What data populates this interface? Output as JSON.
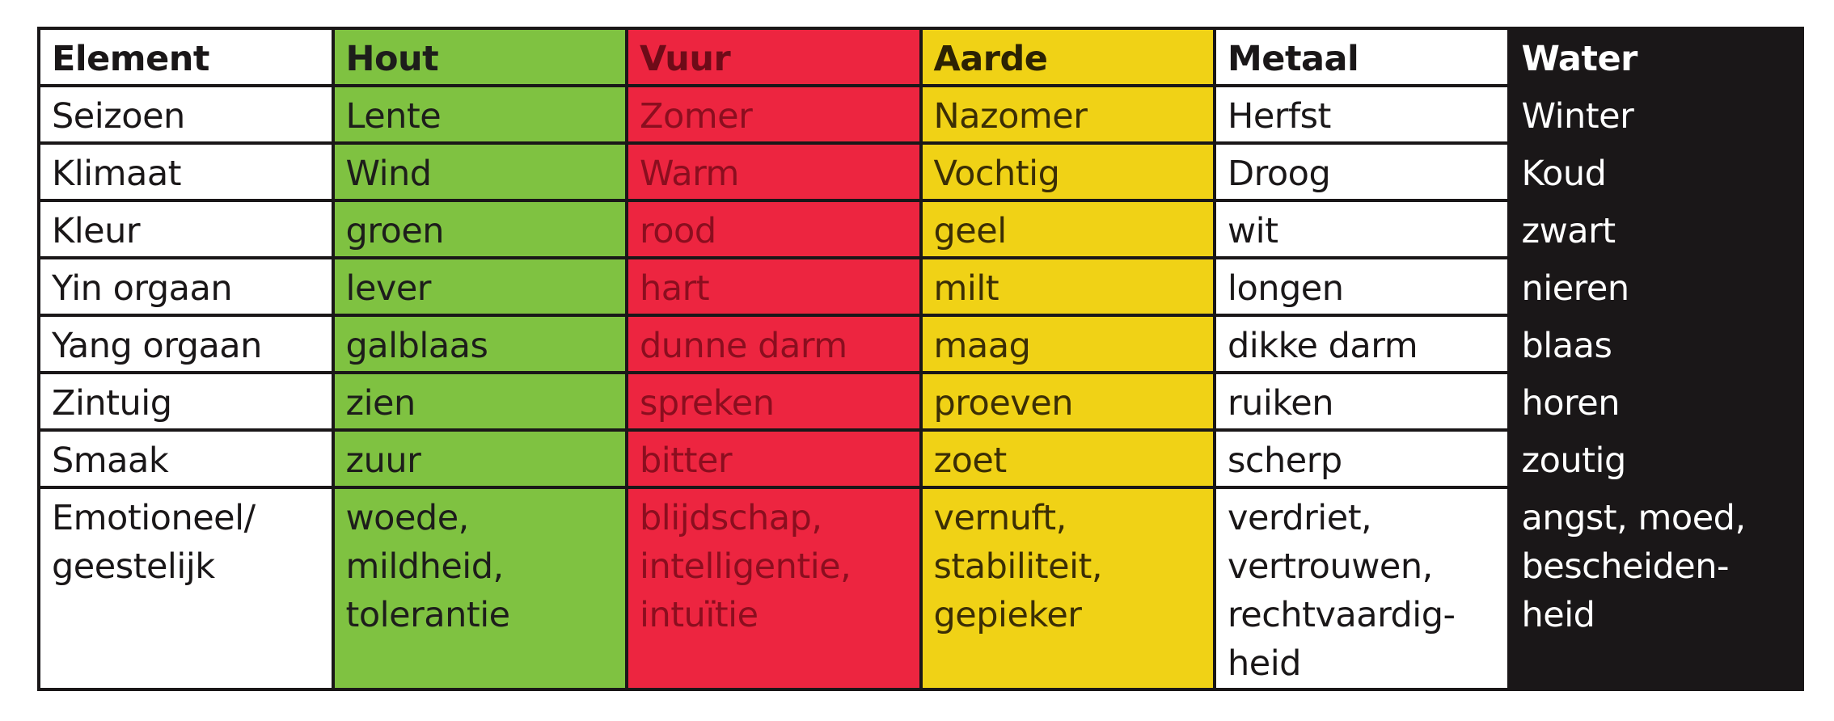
{
  "table": {
    "header": {
      "label": "Element",
      "wood": "Hout",
      "fire": "Vuur",
      "earth": "Aarde",
      "metal": "Metaal",
      "water": "Water"
    },
    "rows": [
      {
        "label": "Seizoen",
        "wood": "Lente",
        "fire": "Zomer",
        "earth": "Nazomer",
        "metal": "Herfst",
        "water": "Winter"
      },
      {
        "label": "Klimaat",
        "wood": "Wind",
        "fire": "Warm",
        "earth": "Vochtig",
        "metal": "Droog",
        "water": "Koud"
      },
      {
        "label": "Kleur",
        "wood": "groen",
        "fire": "rood",
        "earth": "geel",
        "metal": "wit",
        "water": "zwart"
      },
      {
        "label": "Yin orgaan",
        "wood": "lever",
        "fire": "hart",
        "earth": "milt",
        "metal": "longen",
        "water": "nieren"
      },
      {
        "label": "Yang orgaan",
        "wood": "galblaas",
        "fire": "dunne darm",
        "earth": "maag",
        "metal": "dikke darm",
        "water": "blaas"
      },
      {
        "label": "Zintuig",
        "wood": "zien",
        "fire": "spreken",
        "earth": "proeven",
        "metal": "ruiken",
        "water": "horen"
      },
      {
        "label": "Smaak",
        "wood": "zuur",
        "fire": "bitter",
        "earth": "zoet",
        "metal": "scherp",
        "water": "zoutig"
      }
    ],
    "emotion_row": {
      "label": [
        "Emotioneel/",
        "geestelijk"
      ],
      "wood": [
        "woede,",
        "mildheid,",
        "tolerantie"
      ],
      "fire": [
        "blijdschap,",
        "intelligentie,",
        "intuïtie"
      ],
      "earth": [
        "vernuft,",
        "stabiliteit,",
        "gepieker"
      ],
      "metal": [
        "verdriet,",
        "vertrouwen,",
        "rechtvaardig-",
        "heid"
      ],
      "water": [
        "angst, moed,",
        "bescheiden-",
        "heid"
      ]
    }
  },
  "colors": {
    "wood": "#7fc241",
    "fire": "#ed2540",
    "earth": "#f0d216",
    "metal": "#ffffff",
    "water": "#1a1718",
    "border": "#1a1718"
  }
}
